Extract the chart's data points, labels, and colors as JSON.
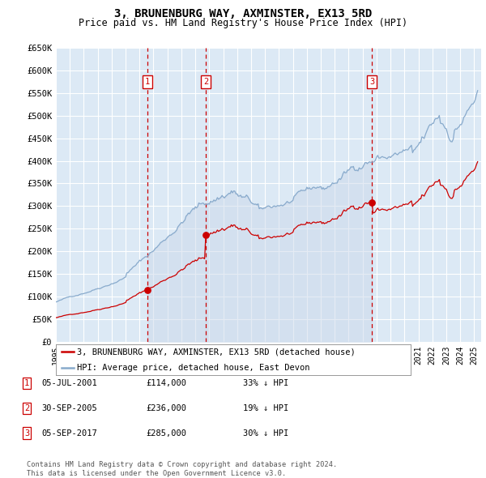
{
  "title": "3, BRUNENBURG WAY, AXMINSTER, EX13 5RD",
  "subtitle": "Price paid vs. HM Land Registry's House Price Index (HPI)",
  "ylim": [
    0,
    650000
  ],
  "ytick_labels": [
    "£0",
    "£50K",
    "£100K",
    "£150K",
    "£200K",
    "£250K",
    "£300K",
    "£350K",
    "£400K",
    "£450K",
    "£500K",
    "£550K",
    "£600K",
    "£650K"
  ],
  "xlim_start": 1995.0,
  "xlim_end": 2025.5,
  "plot_bg_color": "#dce9f5",
  "grid_color": "#ffffff",
  "line_red_color": "#cc0000",
  "line_blue_color": "#88aacc",
  "transaction_line_color": "#cc0000",
  "marker_box_color": "#cc0000",
  "transactions": [
    {
      "date_label": "05-JUL-2001",
      "x": 2001.54,
      "price": 114000,
      "hpi_pct": "33%",
      "label": "1"
    },
    {
      "date_label": "30-SEP-2005",
      "x": 2005.75,
      "price": 236000,
      "hpi_pct": "19%",
      "label": "2"
    },
    {
      "date_label": "05-SEP-2017",
      "x": 2017.67,
      "price": 285000,
      "hpi_pct": "30%",
      "label": "3"
    }
  ],
  "legend_label_red": "3, BRUNENBURG WAY, AXMINSTER, EX13 5RD (detached house)",
  "legend_label_blue": "HPI: Average price, detached house, East Devon",
  "footnote": "Contains HM Land Registry data © Crown copyright and database right 2024.\nThis data is licensed under the Open Government Licence v3.0.",
  "shade_color": "#ccd9ea",
  "transaction_dot_color": "#cc0000"
}
